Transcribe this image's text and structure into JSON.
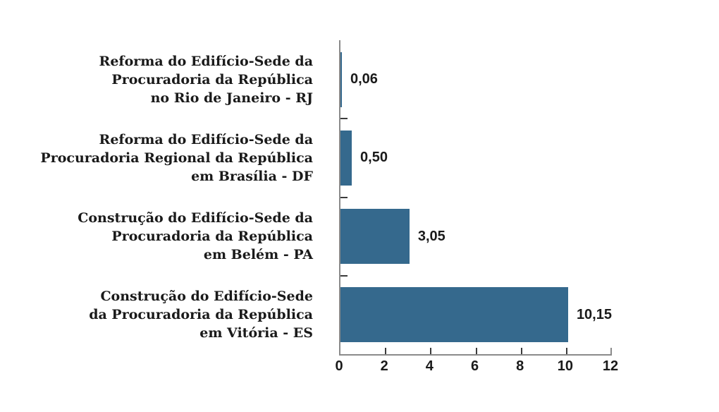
{
  "chart_data": {
    "type": "bar",
    "orientation": "horizontal",
    "title": "",
    "categories": [
      "Reforma do Edifício-Sede da Procuradoria da República no Rio de Janeiro - RJ",
      "Reforma do Edifício-Sede da Procuradoria Regional da República em Brasília - DF",
      "Construção do Edifício-Sede da Procuradoria da República em Belém - PA",
      "Construção do Edifício-Sede da Procuradoria da República em Vitória - ES"
    ],
    "categories_lines": [
      [
        "Reforma do Edifício-Sede da",
        "Procuradoria da República",
        "no Rio de Janeiro - RJ"
      ],
      [
        "Reforma do Edifício-Sede da",
        "Procuradoria Regional da República",
        "em Brasília - DF"
      ],
      [
        "Construção do Edifício-Sede da",
        "Procuradoria da República",
        "em Belém - PA"
      ],
      [
        "Construção do Edifício-Sede",
        "da Procuradoria da República",
        "em Vitória - ES"
      ]
    ],
    "values": [
      0.06,
      0.5,
      3.05,
      10.15
    ],
    "value_labels": [
      "0,06",
      "0,50",
      "3,05",
      "10,15"
    ],
    "xlabel": "",
    "ylabel": "",
    "xlim": [
      0,
      12
    ],
    "x_ticks": [
      0,
      2,
      4,
      6,
      8,
      10,
      12
    ],
    "x_tick_labels": [
      "0",
      "2",
      "4",
      "6",
      "8",
      "10",
      "12"
    ],
    "inner_x_ticks": [
      2,
      4,
      6,
      8,
      10
    ],
    "grid": false,
    "legend": "none",
    "colors": {
      "bar": "#35698d",
      "axis": "#8a8a8a",
      "tick": "#3b3b3b",
      "text": "#1a1a1a",
      "background": "#ffffff"
    }
  }
}
